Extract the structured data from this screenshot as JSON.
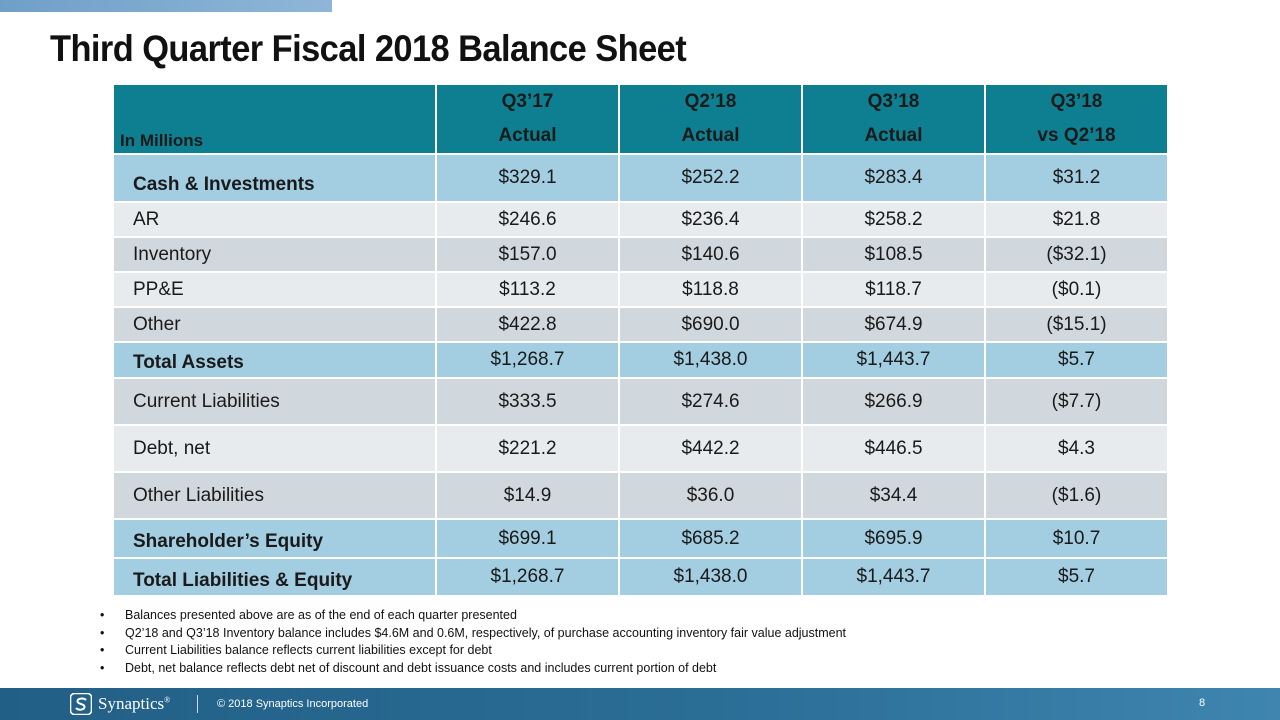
{
  "slide": {
    "title": "Third Quarter Fiscal 2018 Balance Sheet"
  },
  "table": {
    "units_label": "In Millions",
    "columns": [
      {
        "line1": "Q3’17",
        "line2": "Actual"
      },
      {
        "line1": "Q2’18",
        "line2": "Actual"
      },
      {
        "line1": "Q3’18",
        "line2": "Actual"
      },
      {
        "line1": "Q3’18",
        "line2": "vs Q2’18"
      }
    ],
    "rows": [
      {
        "label": "Cash & Investments",
        "values": [
          "$329.1",
          "$252.2",
          "$283.4",
          "$31.2"
        ]
      },
      {
        "label": "AR",
        "values": [
          "$246.6",
          "$236.4",
          "$258.2",
          "$21.8"
        ]
      },
      {
        "label": "Inventory",
        "values": [
          "$157.0",
          "$140.6",
          "$108.5",
          "($32.1)"
        ]
      },
      {
        "label": "PP&E",
        "values": [
          "$113.2",
          "$118.8",
          "$118.7",
          "($0.1)"
        ]
      },
      {
        "label": "Other",
        "values": [
          "$422.8",
          "$690.0",
          "$674.9",
          "($15.1)"
        ]
      },
      {
        "label": "Total Assets",
        "values": [
          "$1,268.7",
          "$1,438.0",
          "$1,443.7",
          "$5.7"
        ]
      },
      {
        "label": "Current Liabilities",
        "values": [
          "$333.5",
          "$274.6",
          "$266.9",
          "($7.7)"
        ]
      },
      {
        "label": "Debt, net",
        "values": [
          "$221.2",
          "$442.2",
          "$446.5",
          "$4.3"
        ]
      },
      {
        "label": "Other Liabilities",
        "values": [
          "$14.9",
          "$36.0",
          "$34.4",
          "($1.6)"
        ]
      },
      {
        "label": "Shareholder’s Equity",
        "values": [
          "$699.1",
          "$685.2",
          "$695.9",
          "$10.7"
        ]
      },
      {
        "label": "Total Liabilities & Equity",
        "values": [
          "$1,268.7",
          "$1,438.0",
          "$1,443.7",
          "$5.7"
        ]
      }
    ]
  },
  "notes": [
    "Balances presented above are as of the end of each quarter presented",
    "Q2’18 and Q3’18 Inventory balance includes $4.6M and 0.6M, respectively, of purchase accounting inventory fair value adjustment",
    "Current Liabilities balance reflects current liabilities except for debt",
    "Debt, net balance reflects debt net of discount and debt issuance costs and includes current portion of debt"
  ],
  "footer": {
    "logo_text": "Synaptics",
    "logo_mark": "®",
    "copyright": "© 2018 Synaptics Incorporated",
    "page_number": "8"
  },
  "colors": {
    "header": "#0e7f91",
    "highlight_row": "#a3cde0",
    "light_row": "#e7ebee",
    "mid_row": "#d0d8dd",
    "footer_bar": "#225f86"
  }
}
